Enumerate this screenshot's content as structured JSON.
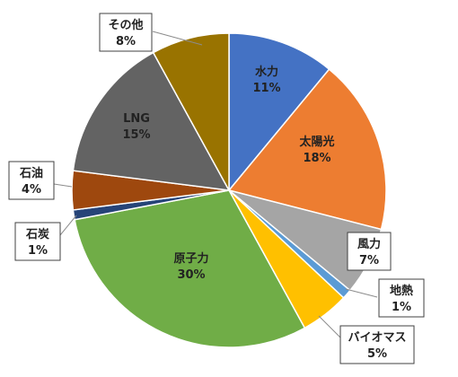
{
  "chart_data": {
    "type": "pie",
    "slices": [
      {
        "label": "水力",
        "value": 11,
        "pct_label": "11%",
        "color": "#4472C4"
      },
      {
        "label": "太陽光",
        "value": 18,
        "pct_label": "18%",
        "color": "#ED7D31"
      },
      {
        "label": "風力",
        "value": 7,
        "pct_label": "7%",
        "color": "#A5A5A5"
      },
      {
        "label": "地熱",
        "value": 1,
        "pct_label": "1%",
        "color": "#5B9BD5"
      },
      {
        "label": "バイオマス",
        "value": 5,
        "pct_label": "5%",
        "color": "#FFC000"
      },
      {
        "label": "原子力",
        "value": 30,
        "pct_label": "30%",
        "color": "#70AD47"
      },
      {
        "label": "石炭",
        "value": 1,
        "pct_label": "1%",
        "color": "#264478"
      },
      {
        "label": "石油",
        "value": 4,
        "pct_label": "4%",
        "color": "#9E480E"
      },
      {
        "label": "LNG",
        "value": 15,
        "pct_label": "15%",
        "color": "#636363"
      },
      {
        "label": "その他",
        "value": 8,
        "pct_label": "8%",
        "color": "#997300"
      }
    ],
    "start_angle": "12 o'clock",
    "direction": "clockwise",
    "legend": "none"
  }
}
